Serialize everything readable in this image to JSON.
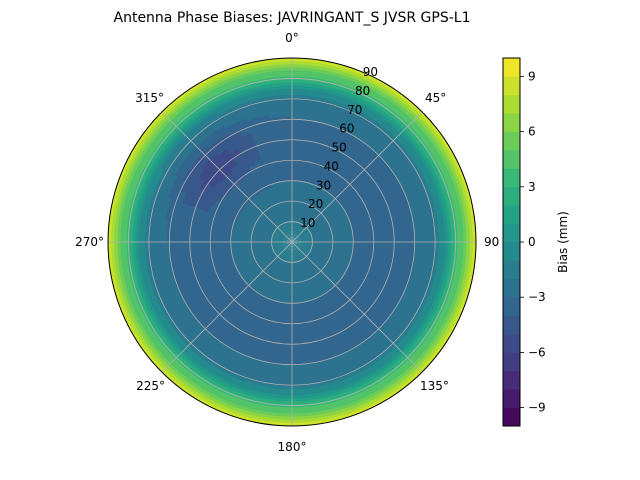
{
  "chart_data": {
    "type": "heatmap",
    "subtype": "polar-contour",
    "title": "Antenna Phase Biases: JAVRINGANT_S    JVSR GPS-L1",
    "angular_ticks": [
      "0°",
      "45°",
      "90",
      "135°",
      "180°",
      "225°",
      "270°",
      "315°"
    ],
    "radial_ticks": [
      "10",
      "20",
      "30",
      "40",
      "50",
      "60",
      "70",
      "80",
      "90"
    ],
    "radial_range": [
      0,
      90
    ],
    "grid": true,
    "colorbar": {
      "label": "Bias (mm)",
      "range": [
        -10,
        10
      ],
      "ticks": [
        "9",
        "6",
        "3",
        "0",
        "−3",
        "−6",
        "−9"
      ],
      "tick_values": [
        9,
        6,
        3,
        0,
        -3,
        -6,
        -9
      ],
      "levels": [
        -10,
        -9,
        -8,
        -7,
        -6,
        -5,
        -4,
        -3,
        -2,
        -1,
        0,
        1,
        2,
        3,
        4,
        5,
        6,
        7,
        8,
        9,
        10
      ],
      "colormap": "viridis"
    },
    "bias_by_zenith": {
      "zenith": [
        0,
        10,
        20,
        30,
        40,
        50,
        60,
        70,
        75,
        80,
        85,
        90
      ],
      "bias": [
        -1.5,
        -2,
        -2.5,
        -3,
        -3.3,
        -3.3,
        -3,
        -2,
        0,
        3,
        6,
        9
      ]
    },
    "anomaly": {
      "azimuth": 315,
      "zenith": 52,
      "bias": -5.5
    }
  }
}
